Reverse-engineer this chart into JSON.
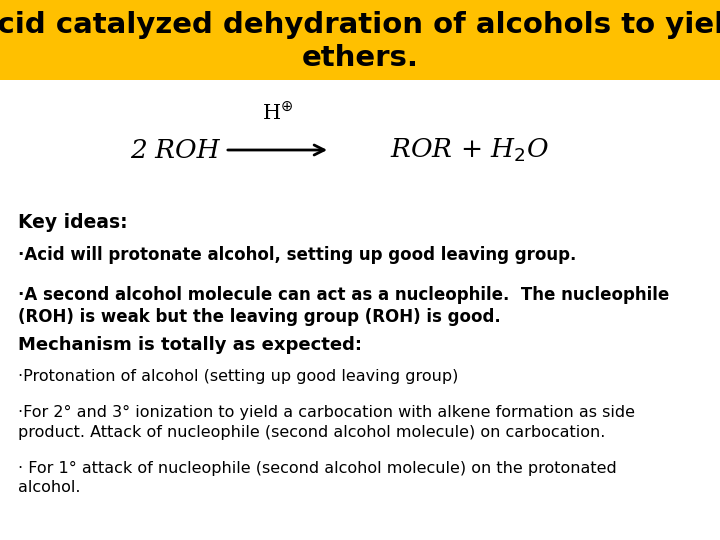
{
  "title_line1": "Acid catalyzed dehydration of alcohols to yield",
  "title_line2": "ethers.",
  "title_bg": "#FFC000",
  "title_color": "#000000",
  "title_fontsize": 21,
  "bg_color": "#FFFFFF",
  "key_ideas_label": "Key ideas:",
  "bullet1": "·Acid will protonate alcohol, setting up good leaving group.",
  "bullet2a": "·A second alcohol molecule can act as a nucleophile.  The nucleophile",
  "bullet2b": "(ROH) is weak but the leaving group (ROH) is good.",
  "mechanism_label": "Mechanism is totally as expected:",
  "bullet3": "·Protonation of alcohol (setting up good leaving group)",
  "bullet4a": "·For 2° and 3° ionization to yield a carbocation with alkene formation as side",
  "bullet4b": "product. Attack of nucleophile (second alcohol molecule) on carbocation.",
  "bullet5a": "· For 1° attack of nucleophile (second alcohol molecule) on the protonated",
  "bullet5b": "alcohol.",
  "text_fontsize": 11.5,
  "bold_fontsize": 12
}
